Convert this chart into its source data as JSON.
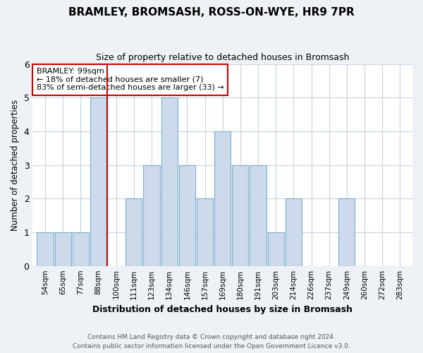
{
  "title": "BRAMLEY, BROMSASH, ROSS-ON-WYE, HR9 7PR",
  "subtitle": "Size of property relative to detached houses in Bromsash",
  "xlabel": "Distribution of detached houses by size in Bromsash",
  "ylabel": "Number of detached properties",
  "bin_labels": [
    "54sqm",
    "65sqm",
    "77sqm",
    "88sqm",
    "100sqm",
    "111sqm",
    "123sqm",
    "134sqm",
    "146sqm",
    "157sqm",
    "169sqm",
    "180sqm",
    "191sqm",
    "203sqm",
    "214sqm",
    "226sqm",
    "237sqm",
    "249sqm",
    "260sqm",
    "272sqm",
    "283sqm"
  ],
  "bar_values": [
    1,
    1,
    1,
    5,
    0,
    2,
    3,
    5,
    3,
    2,
    4,
    3,
    3,
    1,
    2,
    0,
    0,
    2,
    0,
    0,
    0
  ],
  "bar_color": "#cddaeb",
  "bar_edge_color": "#7aaecc",
  "vline_pos": 4,
  "vline_color": "#cc0000",
  "annotation_title": "BRAMLEY: 99sqm",
  "annotation_line1": "← 18% of detached houses are smaller (7)",
  "annotation_line2": "83% of semi-detached houses are larger (33) →",
  "annotation_box_color": "#ffffff",
  "annotation_box_edge": "#cc0000",
  "ylim": [
    0,
    6
  ],
  "yticks": [
    0,
    1,
    2,
    3,
    4,
    5,
    6
  ],
  "footer1": "Contains HM Land Registry data © Crown copyright and database right 2024.",
  "footer2": "Contains public sector information licensed under the Open Government Licence v3.0.",
  "bg_color": "#eef2f7",
  "plot_bg_color": "#ffffff",
  "grid_color": "#c8d4e0"
}
